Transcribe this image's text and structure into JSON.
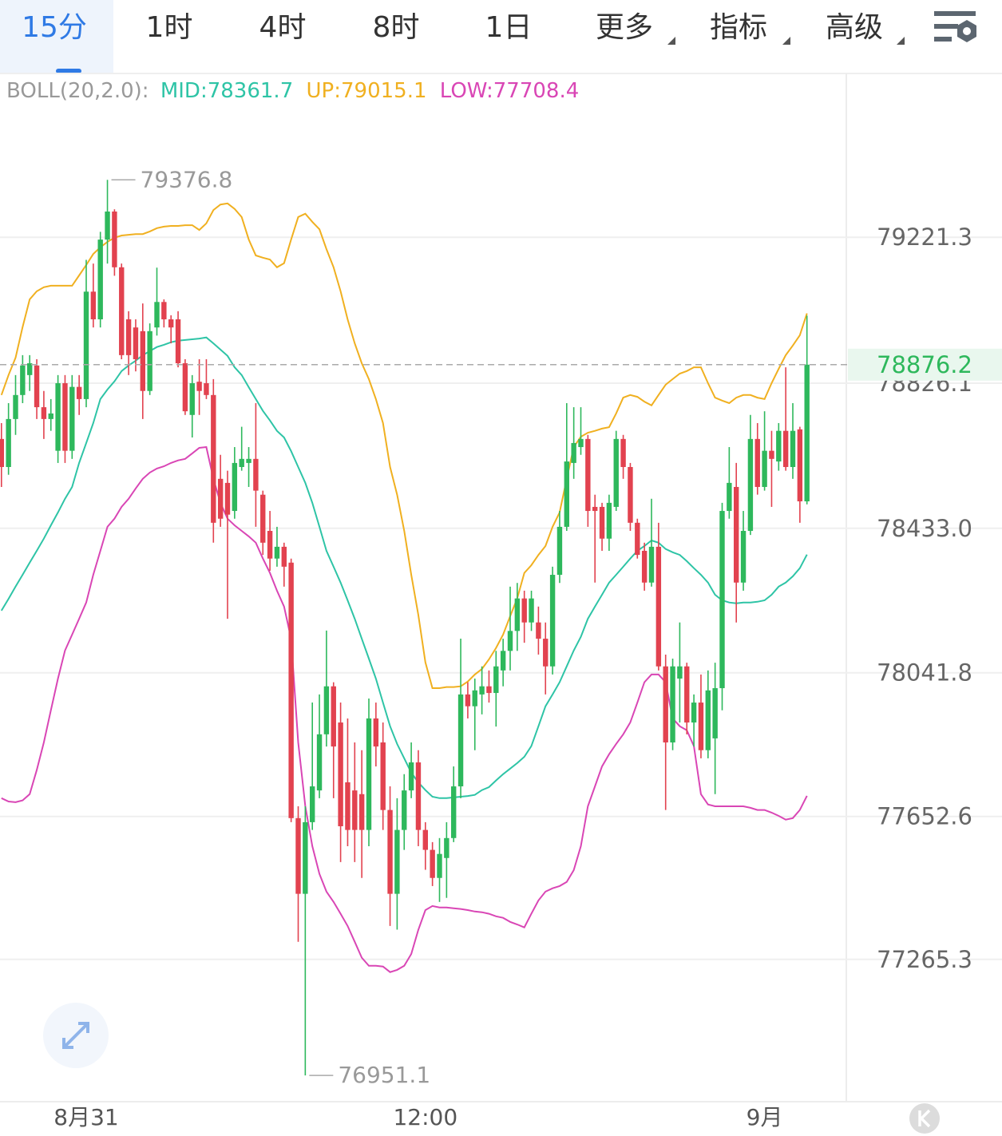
{
  "tabs": [
    "15分",
    "1时",
    "4时",
    "8时",
    "1日",
    "更多",
    "指标",
    "高级"
  ],
  "chart_data": {
    "type": "candlestick",
    "indicator": "BOLL(20,2.0):",
    "categories": [
      null,
      null,
      null,
      null,
      null,
      null,
      null,
      null,
      null,
      null,
      null,
      null,
      "8月31",
      null,
      null,
      null,
      null,
      null,
      null,
      null,
      null,
      null,
      null,
      null,
      null,
      null,
      null,
      null,
      null,
      null,
      null,
      null,
      null,
      null,
      null,
      null,
      null,
      null,
      null,
      null,
      null,
      null,
      null,
      null,
      null,
      null,
      null,
      null,
      null,
      null,
      null,
      null,
      null,
      null,
      null,
      null,
      null,
      null,
      null,
      null,
      "12:00",
      null,
      null,
      null,
      null,
      null,
      null,
      null,
      null,
      null,
      null,
      null,
      null,
      null,
      null,
      null,
      null,
      null,
      null,
      null,
      null,
      null,
      null,
      null,
      null,
      null,
      null,
      null,
      null,
      null,
      null,
      null,
      null,
      null,
      null,
      null,
      null,
      null,
      null,
      null,
      null,
      null,
      null,
      null,
      null,
      null,
      null,
      null,
      "9月",
      null,
      null,
      null,
      null,
      null,
      null
    ],
    "open": [
      78675,
      78599,
      78729,
      78794,
      78848,
      78874,
      78761,
      78729,
      78643,
      78826,
      78643,
      78816,
      78783,
      79074,
      78999,
      79215,
      79291,
      79140,
      78999,
      78977,
      78967,
      78805,
      78977,
      79046,
      78999,
      78999,
      78880,
      78740,
      78830,
      78826,
      78794,
      78567,
      78556,
      78480,
      78599,
      78610,
      78621,
      78524,
      78426,
      78351,
      78383,
      78340,
      77648,
      77443,
      77637,
      77723,
      77875,
      78005,
      77907,
      77745,
      77723,
      77713,
      77616,
      77918,
      77853,
      77670,
      77443,
      77616,
      77723,
      77799,
      77616,
      77562,
      77486,
      77540,
      77594,
      77734,
      77983,
      77951,
      77983,
      78005,
      77987,
      78048,
      78101,
      78155,
      78243,
      78178,
      78178,
      78134,
      78059,
      78307,
      78437,
      78610,
      78653,
      78675,
      78491,
      78491,
      78405,
      78491,
      78675,
      78599,
      78448,
      78372,
      78286,
      78383,
      78059,
      77853,
      78026,
      78059,
      77907,
      77961,
      77832,
      77864,
      78000,
      78480,
      78545,
      78286,
      78426,
      78675,
      78545,
      78643,
      78614,
      78697,
      78599,
      78701,
      78506
    ],
    "high": [
      78718,
      78772,
      78848,
      78902,
      78902,
      78891,
      78805,
      78783,
      78848,
      78848,
      78848,
      78848,
      79160,
      79150,
      79236,
      79376.8,
      79297,
      79150,
      79021,
      78999,
      79042,
      78988,
      79139,
      79053,
      79010,
      79021,
      78891,
      78848,
      78891,
      78891,
      78837,
      78632,
      78589,
      78653,
      78708,
      78653,
      78772,
      78535,
      78480,
      78437,
      78394,
      78351,
      77680,
      77680,
      77961,
      77983,
      78156,
      78016,
      77961,
      77918,
      77853,
      77832,
      77972,
      77961,
      77907,
      77734,
      77702,
      77767,
      77853,
      77832,
      77637,
      77583,
      77594,
      77637,
      77788,
      78134,
      78016,
      78026,
      78059,
      78048,
      78101,
      78134,
      78275,
      78285,
      78264,
      78264,
      78221,
      78178,
      78329,
      78480,
      78772,
      78761,
      78761,
      78686,
      78524,
      78502,
      78524,
      78697,
      78686,
      78610,
      78459,
      78394,
      78513,
      78448,
      78091,
      78080,
      78178,
      78069,
      77983,
      78037,
      78048,
      78069,
      78502,
      78653,
      78610,
      78480,
      78740,
      78718,
      78750,
      78697,
      78718,
      78869,
      78772,
      78708,
      79009
    ],
    "low": [
      78545,
      78578,
      78686,
      78772,
      78805,
      78729,
      78675,
      78697,
      78610,
      78610,
      78621,
      78740,
      78761,
      78977,
      78977,
      79150,
      79117,
      78891,
      78848,
      78858,
      78729,
      78794,
      78955,
      78977,
      78934,
      78869,
      78740,
      78679,
      78740,
      78783,
      78394,
      78437,
      78188,
      78459,
      78589,
      78545,
      78437,
      78361,
      78318,
      78329,
      78275,
      77637,
      77313,
      76951.1,
      77616,
      77702,
      77842,
      77702,
      77529,
      77572,
      77529,
      77486,
      77572,
      77788,
      77616,
      77356,
      77346,
      77562,
      77702,
      77572,
      77508,
      77464,
      77421,
      77432,
      77583,
      77702,
      77918,
      77832,
      77929,
      77961,
      77896,
      78005,
      78048,
      78101,
      78123,
      78155,
      78091,
      77983,
      78037,
      78285,
      78426,
      78567,
      78632,
      78437,
      78286,
      78372,
      78372,
      78480,
      78567,
      78426,
      78351,
      78264,
      78275,
      78048,
      77670,
      77832,
      77907,
      77875,
      77842,
      77810,
      77810,
      77713,
      77940,
      78459,
      78178,
      78264,
      78415,
      78524,
      78535,
      78491,
      78589,
      78589,
      78567,
      78448,
      78498
    ],
    "close": [
      78599,
      78729,
      78794,
      78874,
      78880,
      78761,
      78729,
      78744,
      78826,
      78643,
      78816,
      78783,
      79074,
      78999,
      79215,
      79291,
      79140,
      78902,
      78902,
      78891,
      78805,
      78967,
      79046,
      78999,
      78977,
      78880,
      78750,
      78826,
      78805,
      78794,
      78448,
      78459,
      78470,
      78610,
      78621,
      78621,
      78535,
      78394,
      78351,
      78383,
      78329,
      77648,
      77443,
      77637,
      77734,
      77875,
      78005,
      77842,
      77626,
      77616,
      77616,
      77616,
      77918,
      77842,
      77670,
      77443,
      77616,
      77723,
      77799,
      77616,
      77562,
      77486,
      77551,
      77594,
      77734,
      77983,
      77951,
      77994,
      78005,
      77987,
      78059,
      78101,
      78155,
      78243,
      78178,
      78243,
      78134,
      78059,
      78307,
      78437,
      78614,
      78664,
      78675,
      78480,
      78480,
      78405,
      78502,
      78675,
      78599,
      78448,
      78361,
      78286,
      78383,
      78059,
      77853,
      78059,
      78059,
      77907,
      77961,
      77832,
      77994,
      78000,
      78480,
      78556,
      78286,
      78426,
      78675,
      78545,
      78643,
      78621,
      78697,
      78599,
      78697,
      78506,
      78876.2
    ],
    "up_color": "#2eb85c",
    "down_color": "#e2424f",
    "lines": [
      {
        "name": "MID:",
        "color": "#2ec4a6",
        "values": [
          78210,
          78242,
          78275,
          78307,
          78340,
          78372,
          78405,
          78441,
          78476,
          78513,
          78545,
          78610,
          78664,
          78718,
          78783,
          78809,
          78831,
          78859,
          78874,
          78887,
          78902,
          78913,
          78924,
          78930,
          78937,
          78941,
          78943,
          78945,
          78947,
          78950,
          78934,
          78917,
          78900,
          78869,
          78848,
          78815,
          78783,
          78751,
          78725,
          78697,
          78679,
          78642,
          78599,
          78556,
          78502,
          78437,
          78372,
          78329,
          78286,
          78238,
          78188,
          78134,
          78080,
          78026,
          77961,
          77897,
          77849,
          77810,
          77771,
          77745,
          77724,
          77706,
          77702,
          77702,
          77704,
          77706,
          77708,
          77711,
          77724,
          77732,
          77750,
          77767,
          77782,
          77797,
          77814,
          77843,
          77897,
          77951,
          77983,
          78016,
          78059,
          78102,
          78139,
          78188,
          78221,
          78253,
          78286,
          78307,
          78329,
          78351,
          78372,
          78385,
          78400,
          78394,
          78377,
          78368,
          78361,
          78344,
          78325,
          78307,
          78286,
          78253,
          78238,
          78232,
          78230,
          78232,
          78232,
          78234,
          78238,
          78253,
          78275,
          78286,
          78303,
          78325,
          78361.7
        ]
      },
      {
        "name": "UP:",
        "color": "#f0b020",
        "values": [
          78794,
          78848,
          78895,
          78978,
          79053,
          79075,
          79086,
          79090,
          79090,
          79090,
          79090,
          79118,
          79146,
          79176,
          79194,
          79209,
          79220,
          79226,
          79228,
          79230,
          79230,
          79237,
          79246,
          79250,
          79252,
          79252,
          79254,
          79254,
          79241,
          79259,
          79295,
          79310,
          79313,
          79298,
          79276,
          79215,
          79172,
          79166,
          79161,
          79140,
          79151,
          79215,
          79276,
          79285,
          79263,
          79243,
          79189,
          79140,
          79075,
          78999,
          78934,
          78880,
          78837,
          78783,
          78718,
          78599,
          78524,
          78426,
          78307,
          78199,
          78070,
          78000,
          78000,
          78003,
          78003,
          78005,
          78018,
          78037,
          78052,
          78078,
          78109,
          78145,
          78195,
          78243,
          78312,
          78333,
          78361,
          78385,
          78437,
          78476,
          78567,
          78653,
          78681,
          78692,
          78697,
          78703,
          78707,
          78744,
          78787,
          78794,
          78789,
          78776,
          78766,
          78794,
          78822,
          78837,
          78852,
          78859,
          78869,
          78869,
          78826,
          78787,
          78779,
          78772,
          78787,
          78794,
          78794,
          78787,
          78783,
          78826,
          78865,
          78902,
          78928,
          78956,
          79015.1
        ]
      },
      {
        "name": "LOW:",
        "color": "#d946b5",
        "values": [
          77702,
          77693,
          77691,
          77696,
          77713,
          77778,
          77853,
          77940,
          78026,
          78102,
          78145,
          78188,
          78232,
          78307,
          78372,
          78437,
          78459,
          78491,
          78513,
          78541,
          78567,
          78584,
          78595,
          78601,
          78610,
          78617,
          78621,
          78636,
          78651,
          78653,
          78567,
          78502,
          78459,
          78441,
          78426,
          78411,
          78394,
          78351,
          78312,
          78264,
          78221,
          78134,
          77853,
          77680,
          77572,
          77497,
          77449,
          77421,
          77389,
          77356,
          77313,
          77270,
          77248,
          77248,
          77246,
          77231,
          77237,
          77248,
          77280,
          77345,
          77399,
          77410,
          77406,
          77406,
          77404,
          77402,
          77399,
          77395,
          77393,
          77389,
          77382,
          77378,
          77367,
          77360,
          77352,
          77389,
          77425,
          77449,
          77458,
          77464,
          77475,
          77507,
          77572,
          77680,
          77734,
          77788,
          77821,
          77849,
          77875,
          77907,
          77961,
          78016,
          78037,
          78037,
          78016,
          77918,
          77897,
          77886,
          77843,
          77713,
          77685,
          77680,
          77680,
          77680,
          77680,
          77680,
          77676,
          77670,
          77670,
          77663,
          77654,
          77644,
          77648,
          77670,
          77708.4
        ]
      }
    ],
    "ylim": [
      76880,
      79665
    ],
    "yticks": [
      79221.3,
      78826.1,
      {
        "value": 78433,
        "label": "78433.0"
      },
      78041.8,
      77652.6,
      77265.3
    ],
    "grid": true
  }
}
